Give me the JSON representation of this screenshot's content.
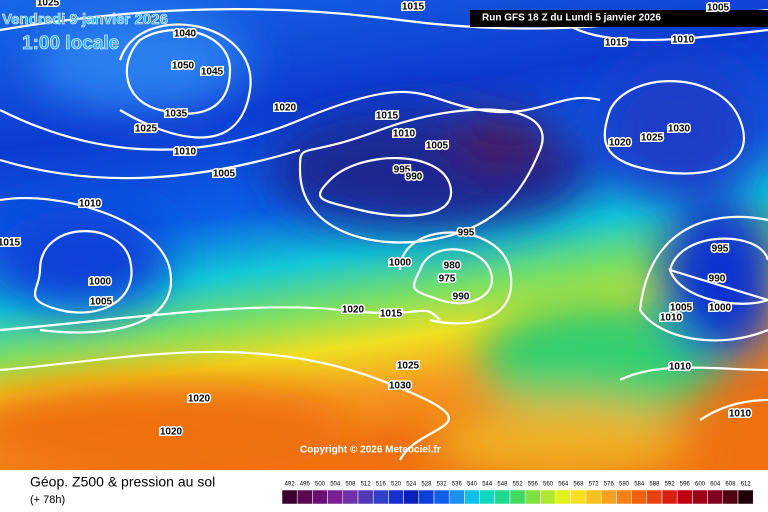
{
  "header": {
    "valid_date": "Vendredi 9 janvier 2026",
    "local_time": "1:00 locale",
    "run": "Run GFS 18 Z du Lundi 5 janvier 2026",
    "copyright": "Copyright © 2026 Meteociel.fr"
  },
  "footer": {
    "title": "Géop. Z500 & pression au sol",
    "lead_time": "(+ 78h)"
  },
  "scale": [
    492,
    496,
    500,
    504,
    508,
    512,
    516,
    520,
    524,
    528,
    532,
    536,
    540,
    544,
    548,
    552,
    556,
    560,
    564,
    568,
    572,
    576,
    580,
    584,
    588,
    592,
    596,
    600,
    604,
    608,
    612
  ],
  "isobar_labels": [
    1015,
    1025,
    1040,
    1050,
    1045,
    1035,
    1025,
    1010,
    1020,
    1015,
    1010,
    1005,
    1005,
    1010,
    995,
    990,
    995,
    1000,
    980,
    975,
    990,
    1015,
    1000,
    1005,
    1020,
    1015,
    1025,
    1030,
    1020,
    1020,
    1015,
    1010,
    1005,
    1025,
    1030,
    1020,
    995,
    990,
    1005,
    1000,
    1010,
    1010,
    1010
  ]
}
